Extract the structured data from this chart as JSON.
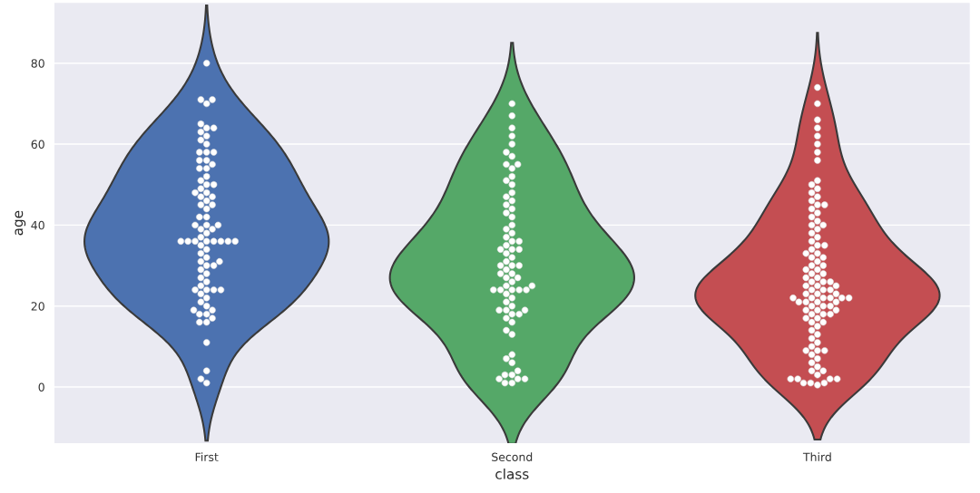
{
  "chart_data": {
    "type": "scatter",
    "xlabel": "class",
    "ylabel": "age",
    "categories": [
      "First",
      "Second",
      "Third"
    ],
    "colors": [
      "#4c72b0",
      "#55a868",
      "#c44e52"
    ],
    "ylim": [
      -14,
      95
    ],
    "yticks": [
      0,
      20,
      40,
      60,
      80
    ],
    "grid": "y",
    "marker": "circle",
    "series": [
      {
        "color": "#ffffff",
        "x": [
          "First",
          "First",
          "First",
          "First",
          "First",
          "First",
          "First",
          "First",
          "First",
          "First",
          "First",
          "First",
          "First",
          "First",
          "First",
          "First",
          "First",
          "First",
          "First",
          "First",
          "First",
          "First",
          "First",
          "First",
          "First",
          "First",
          "First",
          "First",
          "First",
          "First",
          "First",
          "First",
          "First",
          "First",
          "First",
          "First",
          "First",
          "First",
          "First",
          "First",
          "First",
          "First",
          "First",
          "First",
          "First",
          "First",
          "First",
          "First",
          "First",
          "First",
          "First",
          "First",
          "First",
          "First",
          "First",
          "First",
          "First",
          "First",
          "First",
          "First",
          "First",
          "First",
          "First",
          "First",
          "First",
          "First",
          "First",
          "First",
          "First",
          "First",
          "First",
          "First",
          "First",
          "First",
          "First",
          "First",
          "First",
          "First",
          "First",
          "First",
          "First"
        ],
        "values": [
          80,
          71,
          71,
          70,
          65,
          64,
          64,
          63,
          62,
          61,
          60,
          58,
          58,
          58,
          56,
          56,
          55,
          54,
          54,
          52,
          51,
          50,
          50,
          49,
          48,
          48,
          47,
          47,
          46,
          45,
          45,
          44,
          42,
          42,
          40,
          40,
          40,
          39,
          39,
          38,
          37,
          36,
          36,
          36,
          36,
          36,
          36,
          36,
          36,
          35,
          34,
          33,
          32,
          31,
          31,
          30,
          30,
          29,
          28,
          27,
          26,
          25,
          24,
          24,
          24,
          24,
          23,
          22,
          21,
          20,
          19,
          19,
          18,
          18,
          17,
          16,
          16,
          11,
          4,
          2,
          1
        ]
      },
      {
        "color": "#ffffff",
        "x": [
          "Second",
          "Second",
          "Second",
          "Second",
          "Second",
          "Second",
          "Second",
          "Second",
          "Second",
          "Second",
          "Second",
          "Second",
          "Second",
          "Second",
          "Second",
          "Second",
          "Second",
          "Second",
          "Second",
          "Second",
          "Second",
          "Second",
          "Second",
          "Second",
          "Second",
          "Second",
          "Second",
          "Second",
          "Second",
          "Second",
          "Second",
          "Second",
          "Second",
          "Second",
          "Second",
          "Second",
          "Second",
          "Second",
          "Second",
          "Second",
          "Second",
          "Second",
          "Second",
          "Second",
          "Second",
          "Second",
          "Second",
          "Second",
          "Second",
          "Second",
          "Second",
          "Second",
          "Second",
          "Second",
          "Second",
          "Second",
          "Second",
          "Second",
          "Second",
          "Second",
          "Second",
          "Second",
          "Second",
          "Second",
          "Second",
          "Second",
          "Second",
          "Second",
          "Second",
          "Second",
          "Second",
          "Second",
          "Second"
        ],
        "values": [
          70,
          67,
          64,
          62,
          60,
          58,
          57,
          55,
          55,
          54,
          52,
          51,
          50,
          48,
          47,
          46,
          45,
          44,
          43,
          42,
          40,
          39,
          38,
          37,
          36,
          36,
          35,
          34,
          34,
          34,
          33,
          32,
          31,
          30,
          30,
          30,
          29,
          28,
          28,
          27,
          27,
          26,
          25,
          25,
          24,
          24,
          24,
          24,
          24,
          23,
          22,
          21,
          20,
          19,
          19,
          19,
          18,
          18,
          17,
          16,
          14,
          13,
          8,
          7,
          6,
          4,
          3,
          3,
          2,
          2,
          2,
          1,
          1
        ]
      },
      {
        "color": "#ffffff",
        "x": [
          "Third",
          "Third",
          "Third",
          "Third",
          "Third",
          "Third",
          "Third",
          "Third",
          "Third",
          "Third",
          "Third",
          "Third",
          "Third",
          "Third",
          "Third",
          "Third",
          "Third",
          "Third",
          "Third",
          "Third",
          "Third",
          "Third",
          "Third",
          "Third",
          "Third",
          "Third",
          "Third",
          "Third",
          "Third",
          "Third",
          "Third",
          "Third",
          "Third",
          "Third",
          "Third",
          "Third",
          "Third",
          "Third",
          "Third",
          "Third",
          "Third",
          "Third",
          "Third",
          "Third",
          "Third",
          "Third",
          "Third",
          "Third",
          "Third",
          "Third",
          "Third",
          "Third",
          "Third",
          "Third",
          "Third",
          "Third",
          "Third",
          "Third",
          "Third",
          "Third",
          "Third",
          "Third",
          "Third",
          "Third",
          "Third",
          "Third",
          "Third",
          "Third",
          "Third",
          "Third",
          "Third",
          "Third",
          "Third",
          "Third",
          "Third",
          "Third",
          "Third",
          "Third",
          "Third",
          "Third",
          "Third",
          "Third",
          "Third",
          "Third",
          "Third",
          "Third",
          "Third",
          "Third",
          "Third",
          "Third",
          "Third",
          "Third",
          "Third",
          "Third",
          "Third",
          "Third",
          "Third",
          "Third",
          "Third",
          "Third",
          "Third"
        ],
        "values": [
          74,
          70,
          66,
          64,
          62,
          60,
          58,
          56,
          51,
          50,
          49,
          48,
          47,
          46,
          45,
          45,
          44,
          43,
          42,
          41,
          40,
          40,
          39,
          38,
          37,
          36,
          35,
          35,
          34,
          33,
          33,
          32,
          32,
          31,
          30,
          30,
          29,
          29,
          28,
          28,
          27,
          27,
          26,
          26,
          26,
          25,
          25,
          25,
          24,
          24,
          24,
          23,
          23,
          23,
          22,
          22,
          22,
          22,
          22,
          22,
          21,
          21,
          21,
          21,
          20,
          20,
          20,
          19,
          19,
          19,
          18,
          18,
          18,
          17,
          17,
          16,
          16,
          15,
          14,
          13,
          12,
          11,
          10,
          9,
          9,
          9,
          8,
          7,
          6,
          5,
          4,
          4,
          3,
          2,
          2,
          2,
          2,
          1,
          1,
          1,
          0.5
        ]
      }
    ]
  }
}
